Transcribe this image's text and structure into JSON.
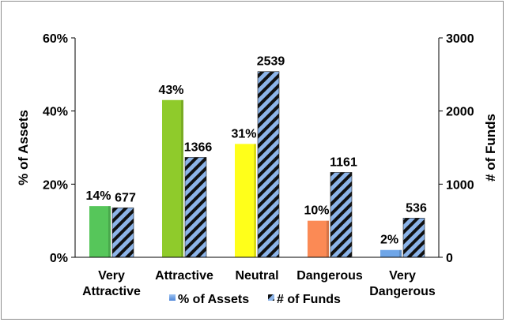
{
  "chart_data": {
    "type": "bar",
    "categories": [
      [
        "Very",
        "Attractive"
      ],
      [
        "Attractive"
      ],
      [
        "Neutral"
      ],
      [
        "Dangerous"
      ],
      [
        "Very",
        "Dangerous"
      ]
    ],
    "series": [
      {
        "name": "% of Assets",
        "axis": "left",
        "values": [
          14,
          43,
          31,
          10,
          2
        ],
        "labels": [
          "14%",
          "43%",
          "31%",
          "10%",
          "2%"
        ],
        "colors": [
          "#56c65a",
          "#8fcb2b",
          "#ffff1a",
          "#fb8a55",
          "#6fa6e8"
        ]
      },
      {
        "name": "# of Funds",
        "axis": "right",
        "values": [
          677,
          1366,
          2539,
          1161,
          536
        ],
        "labels": [
          "677",
          "1366",
          "2539",
          "1161",
          "536"
        ],
        "colors": [
          "#8cb4e8",
          "#8cb4e8",
          "#8cb4e8",
          "#8cb4e8",
          "#8cb4e8"
        ],
        "pattern": "diagonal-stripes-black"
      }
    ],
    "y_left": {
      "label": "% of Assets",
      "ylim": [
        0,
        60
      ],
      "ticks": [
        0,
        20,
        40,
        60
      ],
      "tick_labels": [
        "0%",
        "20%",
        "40%",
        "60%"
      ]
    },
    "y_right": {
      "label": "# of Funds",
      "ylim": [
        0,
        3000
      ],
      "ticks": [
        0,
        1000,
        2000,
        3000
      ],
      "tick_labels": [
        "0",
        "1000",
        "2000",
        "3000"
      ]
    },
    "legend": {
      "placement": "bottom",
      "entries": [
        "% of Assets",
        "# of Funds"
      ]
    },
    "grid": false
  }
}
